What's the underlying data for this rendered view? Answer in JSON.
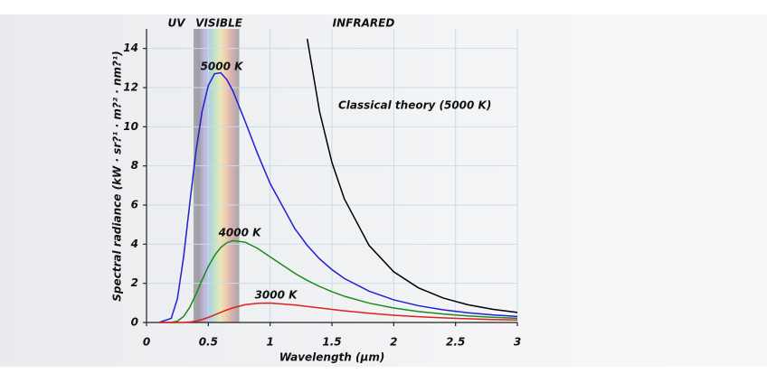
{
  "chart_data": {
    "type": "line",
    "x_label": "Wavelength (µm)",
    "y_label": "Spectral radiance (kW · sr?¹ · m?² · nm?¹)",
    "xlim": [
      0,
      3
    ],
    "ylim": [
      0,
      15
    ],
    "xticks": [
      0,
      0.5,
      1,
      1.5,
      2,
      2.5,
      3
    ],
    "yticks": [
      0,
      2,
      4,
      6,
      8,
      10,
      12,
      14
    ],
    "grid": true,
    "visible_band": [
      0.38,
      0.75
    ],
    "region_labels": [
      "UV",
      "VISIBLE",
      "INFRARED"
    ],
    "x": [
      0.1,
      0.2,
      0.25,
      0.3,
      0.35,
      0.4,
      0.45,
      0.5,
      0.55,
      0.6,
      0.65,
      0.7,
      0.8,
      0.9,
      1.0,
      1.2,
      1.3,
      1.4,
      1.5,
      1.6,
      1.8,
      2.0,
      2.2,
      2.4,
      2.6,
      2.8,
      3.0
    ],
    "series": [
      {
        "name": "5000 K",
        "color": "#1f1fd6",
        "values": [
          0,
          0.21,
          1.22,
          3.35,
          6.09,
          8.74,
          10.8,
          12.11,
          12.71,
          12.76,
          12.41,
          11.81,
          10.24,
          8.6,
          7.1,
          4.79,
          3.94,
          3.25,
          2.7,
          2.25,
          1.6,
          1.157,
          0.856,
          0.646,
          0.495,
          0.386,
          0.305
        ]
      },
      {
        "name": "4000 K",
        "color": "#1a8c1a",
        "values": [
          0,
          0.006,
          0.069,
          0.304,
          0.78,
          1.44,
          2.18,
          2.86,
          3.42,
          3.83,
          4.07,
          4.18,
          4.1,
          3.78,
          3.35,
          2.51,
          2.15,
          1.84,
          1.57,
          1.34,
          0.99,
          0.738,
          0.56,
          0.43,
          0.336,
          0.265,
          0.211
        ]
      },
      {
        "name": "3000 K",
        "color": "#e0201e",
        "values": [
          0,
          0,
          0,
          0.0056,
          0.025,
          0.072,
          0.15,
          0.26,
          0.386,
          0.517,
          0.641,
          0.75,
          0.91,
          0.98,
          0.99,
          0.896,
          0.82,
          0.745,
          0.668,
          0.596,
          0.472,
          0.372,
          0.294,
          0.235,
          0.188,
          0.152,
          0.124
        ]
      },
      {
        "name": "Classical theory (5000 K)",
        "color": "#000000",
        "values": [
          null,
          null,
          null,
          null,
          null,
          null,
          null,
          null,
          null,
          null,
          null,
          null,
          null,
          null,
          null,
          null,
          14.49,
          10.77,
          8.18,
          6.32,
          3.94,
          2.59,
          1.77,
          1.25,
          0.906,
          0.673,
          0.511
        ]
      }
    ]
  }
}
